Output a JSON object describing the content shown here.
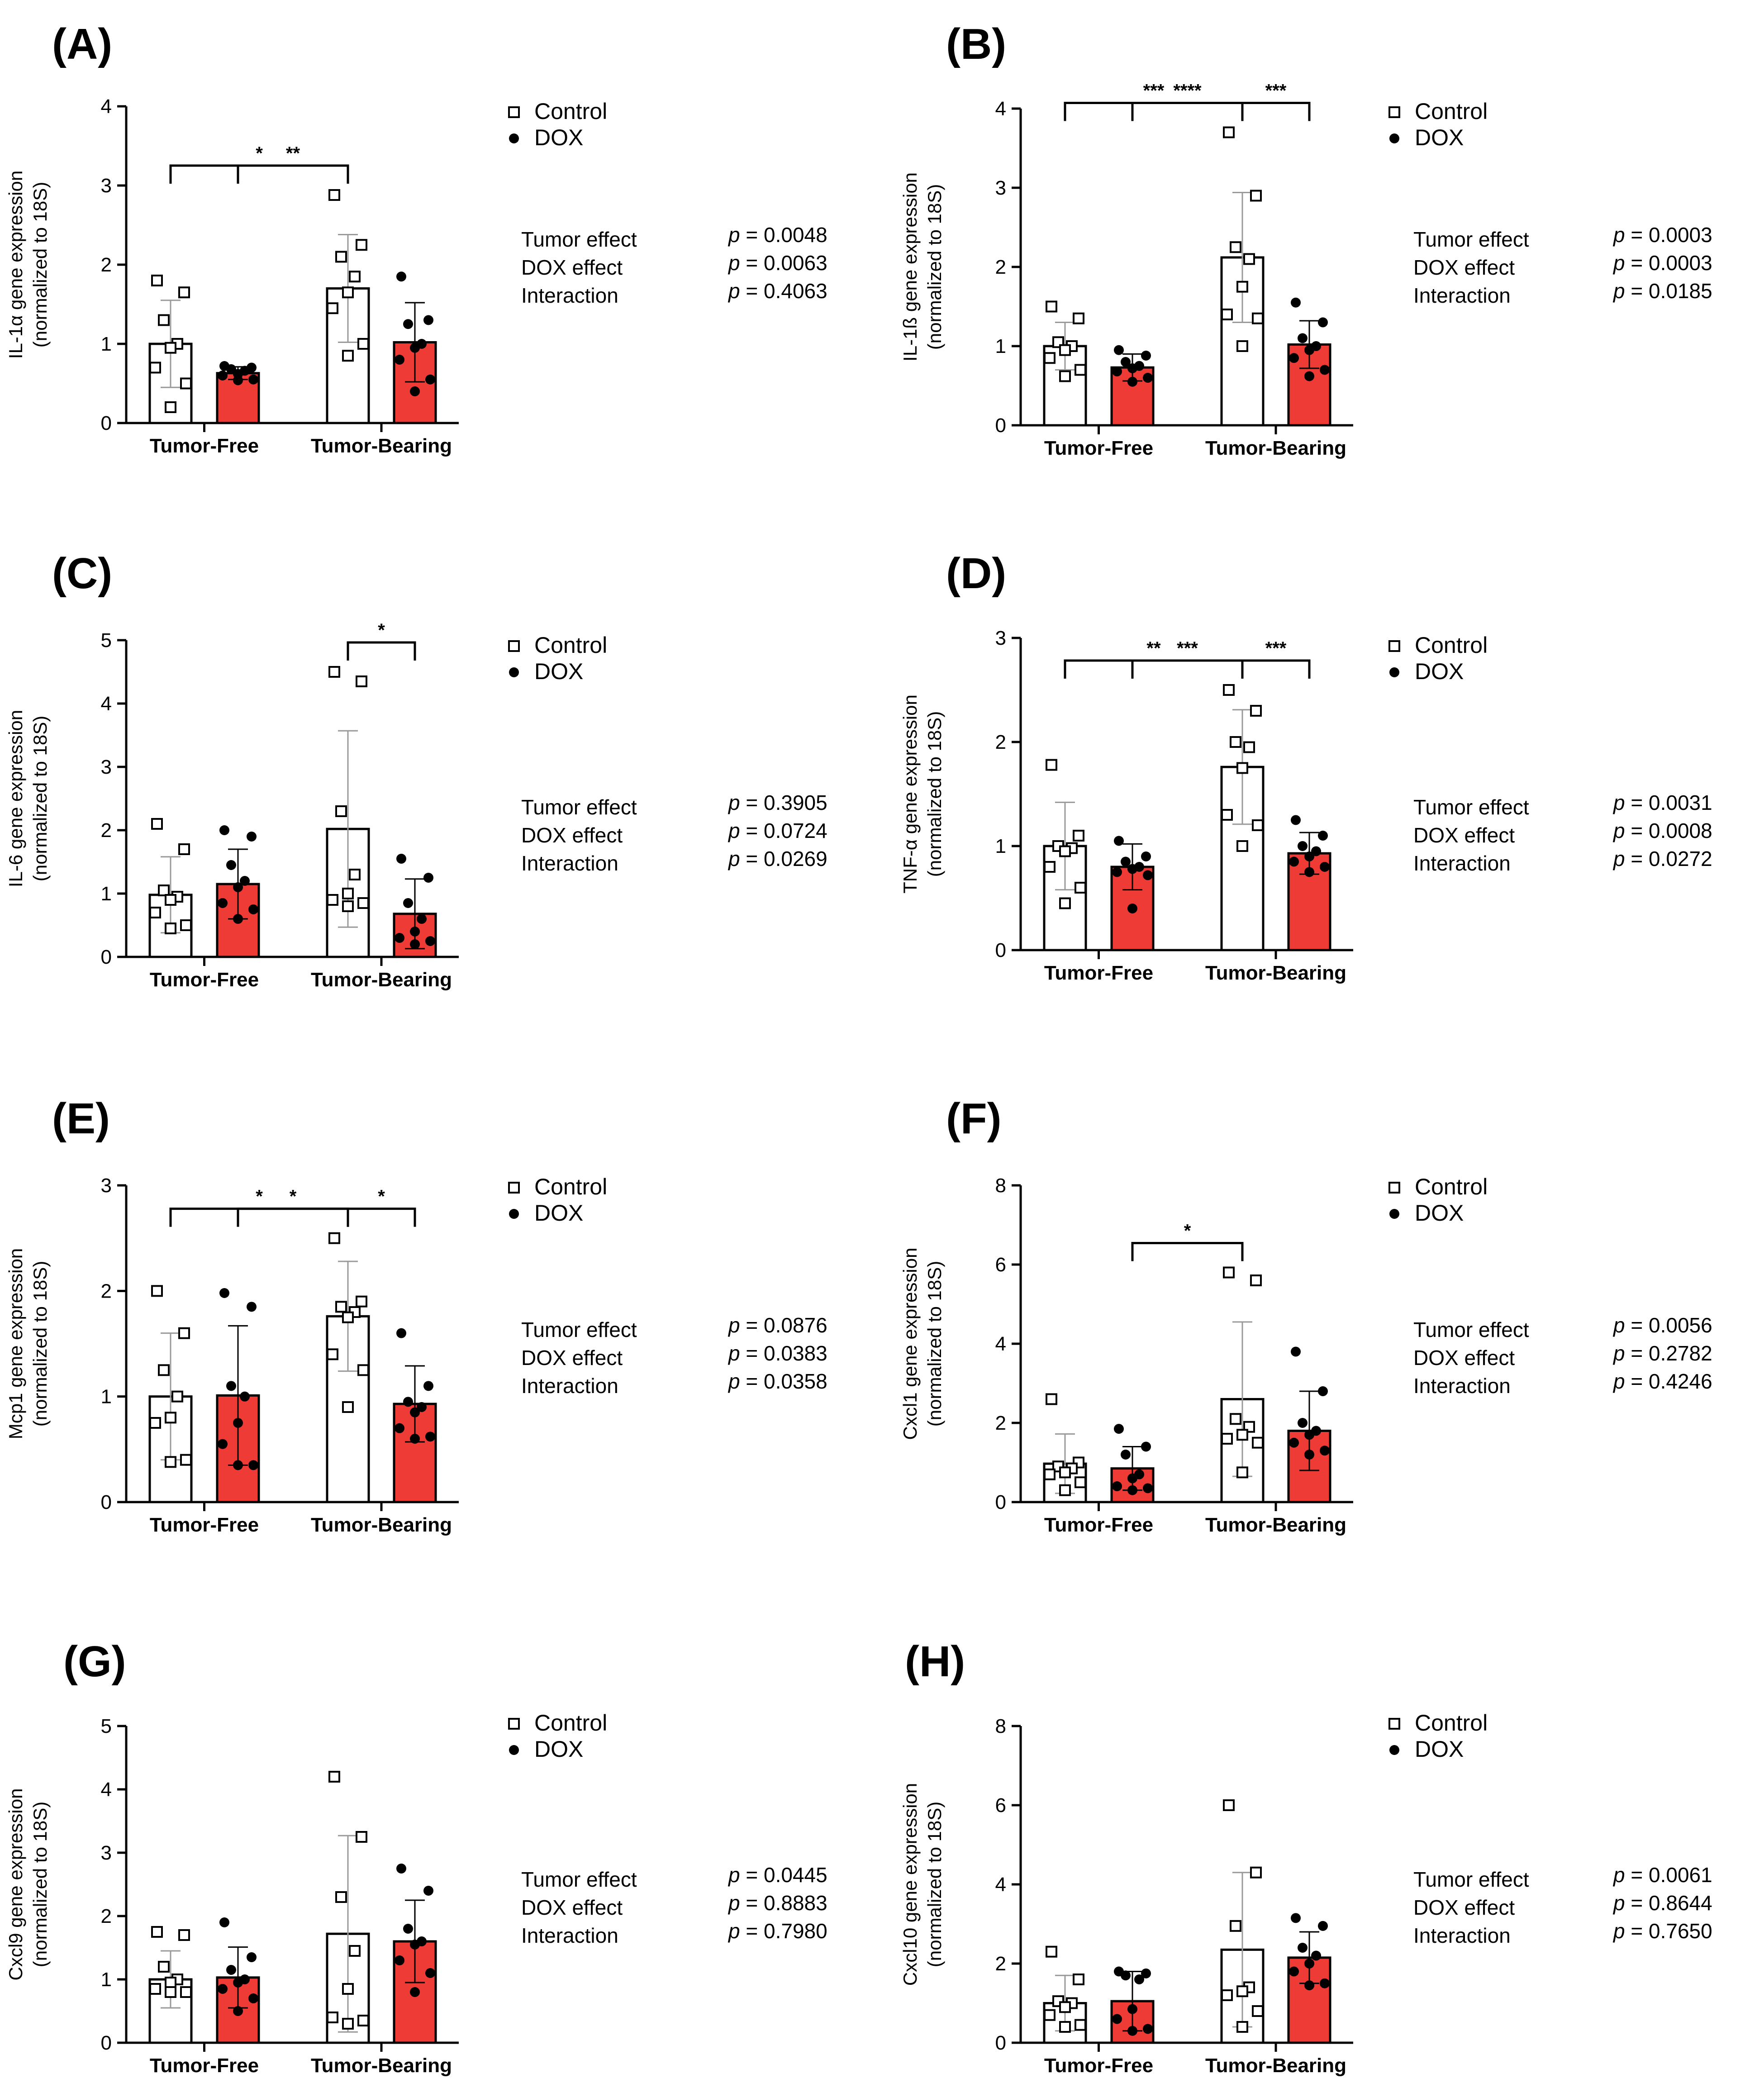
{
  "figure": {
    "groups": [
      "Tumor-Free",
      "Tumor-Bearing"
    ],
    "legend": [
      {
        "label": "Control",
        "marker": "open-square",
        "fill": "#ffffff"
      },
      {
        "label": "DOX",
        "marker": "filled-circle",
        "fill": "#ef3b36"
      }
    ],
    "stat_labels": [
      "Tumor effect",
      "DOX effect",
      "Interaction"
    ],
    "p_prefix": "p",
    "colors": {
      "control_bar": "#ffffff",
      "dox_bar": "#ef3b36",
      "axis": "#000000",
      "error_bar": "#9a9a9a"
    }
  },
  "chart_data": [
    {
      "panel": "(A)",
      "type": "bar",
      "ylabel": [
        "IL-1α gene expression",
        "(normalized to 18S)"
      ],
      "ylim": [
        0,
        4
      ],
      "yticks": [
        0,
        1,
        2,
        3,
        4
      ],
      "categories": [
        "Tumor-Free",
        "Tumor-Bearing"
      ],
      "series": [
        {
          "name": "Control",
          "values": [
            1.0,
            1.7
          ],
          "sd": [
            0.55,
            0.68
          ],
          "points": [
            [
              1.8,
              1.65,
              1.3,
              1.0,
              0.95,
              0.7,
              0.5,
              0.2
            ],
            [
              2.88,
              2.25,
              2.1,
              1.85,
              1.65,
              1.45,
              1.0,
              0.85
            ]
          ]
        },
        {
          "name": "DOX",
          "values": [
            0.63,
            1.02
          ],
          "sd": [
            0.08,
            0.5
          ],
          "points": [
            [
              0.72,
              0.7,
              0.68,
              0.66,
              0.62,
              0.6,
              0.55,
              0.54
            ],
            [
              1.85,
              1.3,
              1.25,
              1.0,
              0.95,
              0.8,
              0.55,
              0.4
            ]
          ]
        }
      ],
      "brackets": [
        {
          "from": "Tumor-Free Control",
          "to": "Tumor-Bearing Control",
          "label": "*"
        },
        {
          "from": "Tumor-Free DOX",
          "to": "Tumor-Bearing Control",
          "label": "**"
        }
      ],
      "stats": [
        "= 0.0048",
        "= 0.0063",
        "= 0.4063"
      ]
    },
    {
      "panel": "(B)",
      "type": "bar",
      "ylabel": [
        "IL-1ß gene expression",
        "(normalized to 18S)"
      ],
      "ylim": [
        0,
        4
      ],
      "yticks": [
        0,
        1,
        2,
        3,
        4
      ],
      "categories": [
        "Tumor-Free",
        "Tumor-Bearing"
      ],
      "series": [
        {
          "name": "Control",
          "values": [
            1.0,
            2.12
          ],
          "sd": [
            0.3,
            0.82
          ],
          "points": [
            [
              1.5,
              1.35,
              1.05,
              1.0,
              0.95,
              0.85,
              0.7,
              0.62
            ],
            [
              3.7,
              2.9,
              2.25,
              2.1,
              1.75,
              1.4,
              1.35,
              1.0
            ]
          ]
        },
        {
          "name": "DOX",
          "values": [
            0.73,
            1.02
          ],
          "sd": [
            0.17,
            0.3
          ],
          "points": [
            [
              0.95,
              0.88,
              0.8,
              0.75,
              0.72,
              0.68,
              0.6,
              0.55
            ],
            [
              1.55,
              1.3,
              1.1,
              1.0,
              0.95,
              0.85,
              0.7,
              0.62
            ]
          ]
        }
      ],
      "brackets": [
        {
          "from": "Tumor-Free Control",
          "to": "Tumor-Bearing Control",
          "label": "***"
        },
        {
          "from": "Tumor-Free DOX",
          "to": "Tumor-Bearing Control",
          "label": "****"
        },
        {
          "from": "Tumor-Bearing Control",
          "to": "Tumor-Bearing DOX",
          "label": "***"
        }
      ],
      "stats": [
        "= 0.0003",
        "= 0.0003",
        "= 0.0185"
      ]
    },
    {
      "panel": "(C)",
      "type": "bar",
      "ylabel": [
        "IL-6 gene expression",
        "(normalized to 18S)"
      ],
      "ylim": [
        0,
        5
      ],
      "yticks": [
        0,
        1,
        2,
        3,
        4,
        5
      ],
      "categories": [
        "Tumor-Free",
        "Tumor-Bearing"
      ],
      "series": [
        {
          "name": "Control",
          "values": [
            0.98,
            2.02
          ],
          "sd": [
            0.6,
            1.55
          ],
          "points": [
            [
              2.1,
              1.7,
              1.05,
              0.95,
              0.9,
              0.7,
              0.5,
              0.45
            ],
            [
              4.5,
              4.35,
              2.3,
              1.3,
              1.0,
              0.9,
              0.85,
              0.8
            ]
          ]
        },
        {
          "name": "DOX",
          "values": [
            1.15,
            0.68
          ],
          "sd": [
            0.55,
            0.55
          ],
          "points": [
            [
              2.0,
              1.9,
              1.45,
              1.2,
              1.1,
              0.85,
              0.75,
              0.6
            ],
            [
              1.55,
              1.25,
              0.85,
              0.6,
              0.4,
              0.3,
              0.25,
              0.2
            ]
          ]
        }
      ],
      "brackets": [
        {
          "from": "Tumor-Bearing Control",
          "to": "Tumor-Bearing DOX",
          "label": "*"
        }
      ],
      "stats": [
        "= 0.3905",
        "= 0.0724",
        "= 0.0269"
      ]
    },
    {
      "panel": "(D)",
      "type": "bar",
      "ylabel": [
        "TNF-α gene expression",
        "(normalized to 18S)"
      ],
      "ylim": [
        0,
        3
      ],
      "yticks": [
        0,
        1,
        2,
        3
      ],
      "categories": [
        "Tumor-Free",
        "Tumor-Bearing"
      ],
      "series": [
        {
          "name": "Control",
          "values": [
            1.0,
            1.76
          ],
          "sd": [
            0.42,
            0.55
          ],
          "points": [
            [
              1.78,
              1.1,
              1.0,
              0.98,
              0.95,
              0.8,
              0.6,
              0.45
            ],
            [
              2.5,
              2.3,
              2.0,
              1.95,
              1.75,
              1.3,
              1.2,
              1.0
            ]
          ]
        },
        {
          "name": "DOX",
          "values": [
            0.8,
            0.93
          ],
          "sd": [
            0.22,
            0.2
          ],
          "points": [
            [
              1.05,
              0.9,
              0.85,
              0.8,
              0.78,
              0.75,
              0.72,
              0.4
            ],
            [
              1.25,
              1.1,
              1.0,
              0.95,
              0.9,
              0.85,
              0.8,
              0.75
            ]
          ]
        }
      ],
      "brackets": [
        {
          "from": "Tumor-Free Control",
          "to": "Tumor-Bearing Control",
          "label": "**"
        },
        {
          "from": "Tumor-Free DOX",
          "to": "Tumor-Bearing Control",
          "label": "***"
        },
        {
          "from": "Tumor-Bearing Control",
          "to": "Tumor-Bearing DOX",
          "label": "***"
        }
      ],
      "stats": [
        "= 0.0031",
        "= 0.0008",
        "= 0.0272"
      ]
    },
    {
      "panel": "(E)",
      "type": "bar",
      "ylabel": [
        "Mcp1 gene expression",
        "(normalized to 18S)"
      ],
      "ylim": [
        0,
        3
      ],
      "yticks": [
        0,
        1,
        2,
        3
      ],
      "categories": [
        "Tumor-Free",
        "Tumor-Bearing"
      ],
      "series": [
        {
          "name": "Control",
          "values": [
            1.0,
            1.76
          ],
          "sd": [
            0.6,
            0.52
          ],
          "points": [
            [
              2.0,
              1.6,
              1.25,
              1.0,
              0.8,
              0.75,
              0.4,
              0.38
            ],
            [
              2.5,
              1.9,
              1.85,
              1.8,
              1.75,
              1.4,
              1.25,
              0.9
            ]
          ]
        },
        {
          "name": "DOX",
          "values": [
            1.01,
            0.93
          ],
          "sd": [
            0.66,
            0.36
          ],
          "points": [
            [
              1.98,
              1.85,
              1.1,
              1.0,
              0.75,
              0.55,
              0.35,
              0.35
            ],
            [
              1.6,
              1.1,
              0.95,
              0.9,
              0.85,
              0.7,
              0.62,
              0.6
            ]
          ]
        }
      ],
      "brackets": [
        {
          "from": "Tumor-Free Control",
          "to": "Tumor-Bearing Control",
          "label": "*"
        },
        {
          "from": "Tumor-Free DOX",
          "to": "Tumor-Bearing Control",
          "label": "*"
        },
        {
          "from": "Tumor-Bearing Control",
          "to": "Tumor-Bearing DOX",
          "label": "*"
        }
      ],
      "stats": [
        "= 0.0876",
        "= 0.0383",
        "= 0.0358"
      ]
    },
    {
      "panel": "(F)",
      "type": "bar",
      "ylabel": [
        "Cxcl1 gene expression",
        "(normalized to 18S)"
      ],
      "ylim": [
        0,
        8
      ],
      "yticks": [
        0,
        2,
        4,
        6,
        8
      ],
      "categories": [
        "Tumor-Free",
        "Tumor-Bearing"
      ],
      "series": [
        {
          "name": "Control",
          "values": [
            0.97,
            2.6
          ],
          "sd": [
            0.75,
            1.95
          ],
          "points": [
            [
              2.6,
              1.0,
              0.9,
              0.85,
              0.75,
              0.7,
              0.5,
              0.3
            ],
            [
              5.8,
              5.6,
              2.1,
              1.9,
              1.7,
              1.6,
              1.5,
              0.75
            ]
          ]
        },
        {
          "name": "DOX",
          "values": [
            0.85,
            1.8
          ],
          "sd": [
            0.55,
            1.0
          ],
          "points": [
            [
              1.85,
              1.4,
              1.2,
              0.7,
              0.6,
              0.4,
              0.35,
              0.3
            ],
            [
              3.8,
              2.8,
              2.0,
              1.8,
              1.7,
              1.5,
              1.3,
              1.2
            ]
          ]
        }
      ],
      "brackets": [
        {
          "from": "Tumor-Free DOX",
          "to": "Tumor-Bearing Control",
          "label": "*"
        }
      ],
      "stats": [
        "= 0.0056",
        "= 0.2782",
        "= 0.4246"
      ]
    },
    {
      "panel": "(G)",
      "type": "bar",
      "ylabel": [
        "Cxcl9 gene expression",
        "(normalized to 18S)"
      ],
      "ylim": [
        0,
        5
      ],
      "yticks": [
        0,
        1,
        2,
        3,
        4,
        5
      ],
      "categories": [
        "Tumor-Free",
        "Tumor-Bearing"
      ],
      "series": [
        {
          "name": "Control",
          "values": [
            1.0,
            1.72
          ],
          "sd": [
            0.45,
            1.55
          ],
          "points": [
            [
              1.75,
              1.7,
              1.2,
              1.0,
              0.95,
              0.85,
              0.8,
              0.8
            ],
            [
              4.2,
              3.25,
              2.3,
              1.45,
              0.85,
              0.4,
              0.35,
              0.3
            ]
          ]
        },
        {
          "name": "DOX",
          "values": [
            1.03,
            1.6
          ],
          "sd": [
            0.48,
            0.65
          ],
          "points": [
            [
              1.9,
              1.35,
              1.15,
              1.0,
              0.95,
              0.85,
              0.7,
              0.5
            ],
            [
              2.75,
              2.4,
              1.8,
              1.6,
              1.55,
              1.3,
              1.1,
              0.8
            ]
          ]
        }
      ],
      "brackets": [],
      "stats": [
        "= 0.0445",
        "= 0.8883",
        "= 0.7980"
      ]
    },
    {
      "panel": "(H)",
      "type": "bar",
      "ylabel": [
        "Cxcl10 gene expression",
        "(normalized to 18S)"
      ],
      "ylim": [
        0,
        8
      ],
      "yticks": [
        0,
        2,
        4,
        6,
        8
      ],
      "categories": [
        "Tumor-Free",
        "Tumor-Bearing"
      ],
      "series": [
        {
          "name": "Control",
          "values": [
            1.0,
            2.35
          ],
          "sd": [
            0.7,
            1.95
          ],
          "points": [
            [
              2.3,
              1.6,
              1.05,
              1.0,
              0.9,
              0.7,
              0.45,
              0.4
            ],
            [
              6.0,
              4.3,
              2.95,
              1.4,
              1.3,
              1.2,
              0.8,
              0.4
            ]
          ]
        },
        {
          "name": "DOX",
          "values": [
            1.05,
            2.15
          ],
          "sd": [
            0.75,
            0.65
          ],
          "points": [
            [
              1.8,
              1.75,
              1.7,
              1.6,
              0.85,
              0.6,
              0.35,
              0.3
            ],
            [
              3.15,
              2.95,
              2.4,
              2.2,
              2.0,
              1.8,
              1.5,
              1.45
            ]
          ]
        }
      ],
      "brackets": [],
      "stats": [
        "= 0.0061",
        "= 0.8644",
        "= 0.7650"
      ]
    }
  ]
}
